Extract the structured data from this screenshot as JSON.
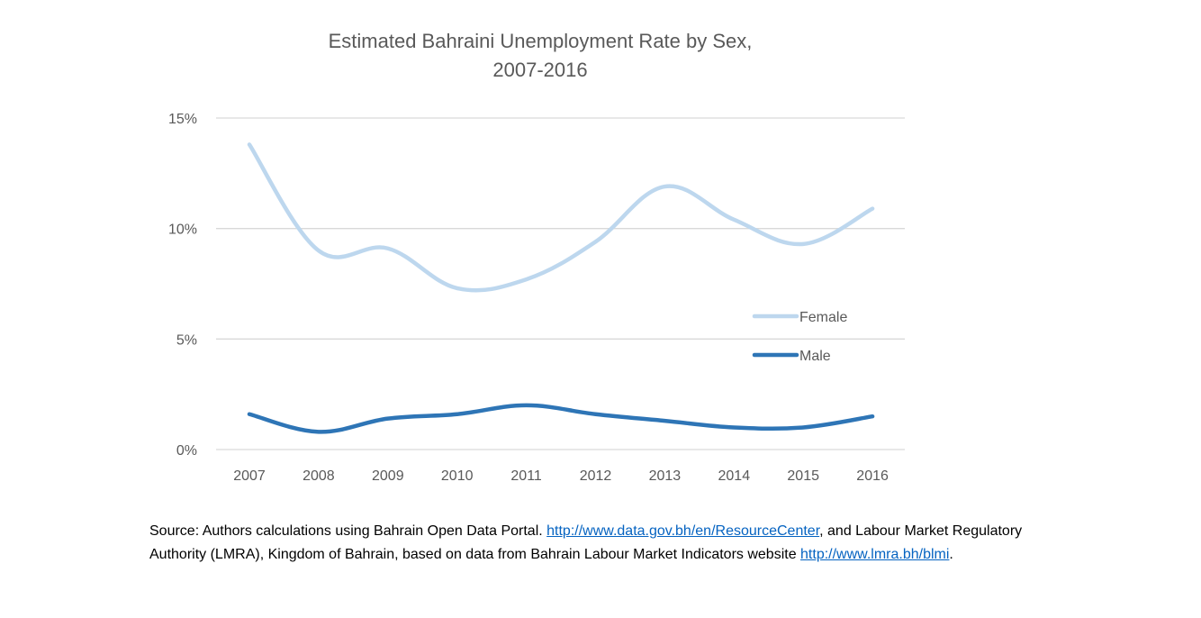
{
  "chart_data": {
    "type": "line",
    "title": "Estimated Bahraini Unemployment Rate by Sex,",
    "title_line2": "2007-2016",
    "categories": [
      "2007",
      "2008",
      "2009",
      "2010",
      "2011",
      "2012",
      "2013",
      "2014",
      "2015",
      "2016"
    ],
    "ylim": [
      0,
      15
    ],
    "yticks": [
      0,
      5,
      10,
      15
    ],
    "ytick_labels": [
      "0%",
      "5%",
      "10%",
      "15%"
    ],
    "grid": true,
    "smooth": true,
    "legend_position": "right",
    "series": [
      {
        "name": "Female",
        "color": "#bdd7ee",
        "values": [
          13.8,
          9.0,
          9.1,
          7.3,
          7.7,
          9.4,
          11.9,
          10.4,
          9.3,
          10.9
        ]
      },
      {
        "name": "Male",
        "color": "#2e75b6",
        "values": [
          1.6,
          0.8,
          1.4,
          1.6,
          2.0,
          1.6,
          1.3,
          1.0,
          1.0,
          1.5
        ]
      }
    ]
  },
  "source": {
    "part1": "Source: Authors calculations using Bahrain Open Data Portal. ",
    "link1": "http://www.data.gov.bh/en/ResourceCenter",
    "part2": ", and Labour Market Regulatory Authority (LMRA), Kingdom of Bahrain, based on data from Bahrain Labour Market Indicators website ",
    "link2": "http://www.lmra.bh/blmi",
    "part3": "."
  }
}
